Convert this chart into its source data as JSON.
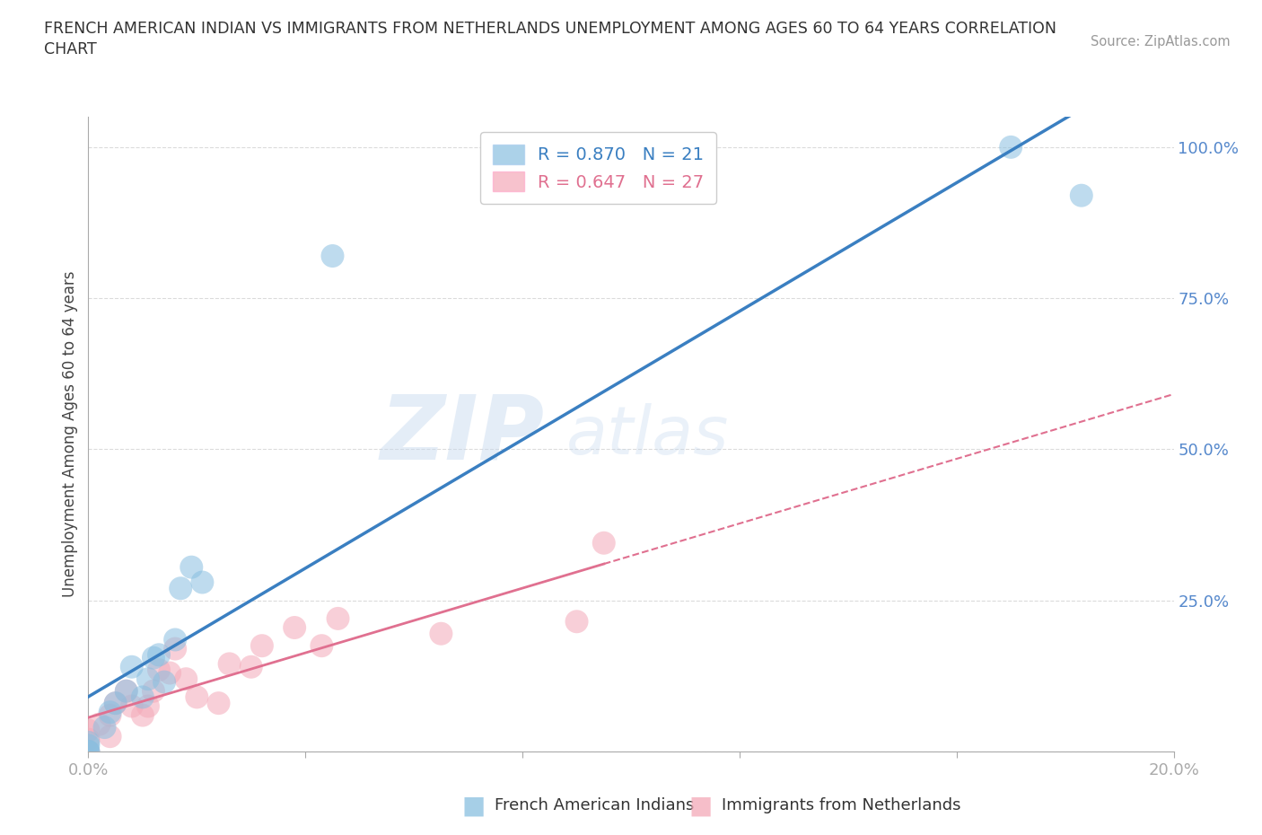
{
  "title_line1": "FRENCH AMERICAN INDIAN VS IMMIGRANTS FROM NETHERLANDS UNEMPLOYMENT AMONG AGES 60 TO 64 YEARS CORRELATION",
  "title_line2": "CHART",
  "source": "Source: ZipAtlas.com",
  "ylabel": "Unemployment Among Ages 60 to 64 years",
  "xlim": [
    0.0,
    0.2
  ],
  "ylim": [
    0.0,
    1.05
  ],
  "xticks": [
    0.0,
    0.04,
    0.08,
    0.12,
    0.16,
    0.2
  ],
  "xticklabels": [
    "0.0%",
    "",
    "",
    "",
    "",
    "20.0%"
  ],
  "ytick_positions": [
    0.0,
    0.25,
    0.5,
    0.75,
    1.0
  ],
  "ytick_labels": [
    "",
    "25.0%",
    "50.0%",
    "75.0%",
    "100.0%"
  ],
  "watermark_zip": "ZIP",
  "watermark_atlas": "atlas",
  "series1_name": "French American Indians",
  "series1_color": "#89bfe0",
  "series1_R": 0.87,
  "series1_N": 21,
  "series2_name": "Immigrants from Netherlands",
  "series2_color": "#f4a9b8",
  "series2_R": 0.647,
  "series2_N": 27,
  "series1_x": [
    0.0,
    0.0,
    0.0,
    0.0,
    0.003,
    0.004,
    0.005,
    0.007,
    0.008,
    0.01,
    0.011,
    0.012,
    0.013,
    0.014,
    0.016,
    0.017,
    0.019,
    0.021,
    0.045,
    0.17,
    0.183
  ],
  "series1_y": [
    0.0,
    0.0,
    0.01,
    0.015,
    0.04,
    0.065,
    0.08,
    0.1,
    0.14,
    0.09,
    0.12,
    0.155,
    0.16,
    0.115,
    0.185,
    0.27,
    0.305,
    0.28,
    0.82,
    1.0,
    0.92
  ],
  "series2_x": [
    0.0,
    0.0,
    0.0,
    0.002,
    0.004,
    0.004,
    0.005,
    0.007,
    0.008,
    0.01,
    0.011,
    0.012,
    0.013,
    0.015,
    0.016,
    0.018,
    0.02,
    0.024,
    0.026,
    0.03,
    0.032,
    0.038,
    0.043,
    0.046,
    0.065,
    0.09,
    0.095
  ],
  "series2_y": [
    0.0,
    0.02,
    0.035,
    0.045,
    0.025,
    0.06,
    0.08,
    0.1,
    0.075,
    0.06,
    0.075,
    0.1,
    0.135,
    0.13,
    0.17,
    0.12,
    0.09,
    0.08,
    0.145,
    0.14,
    0.175,
    0.205,
    0.175,
    0.22,
    0.195,
    0.215,
    0.345
  ],
  "background_color": "#ffffff",
  "grid_color": "#cccccc",
  "trend1_color": "#3a7fc1",
  "trend2_color": "#e07090"
}
